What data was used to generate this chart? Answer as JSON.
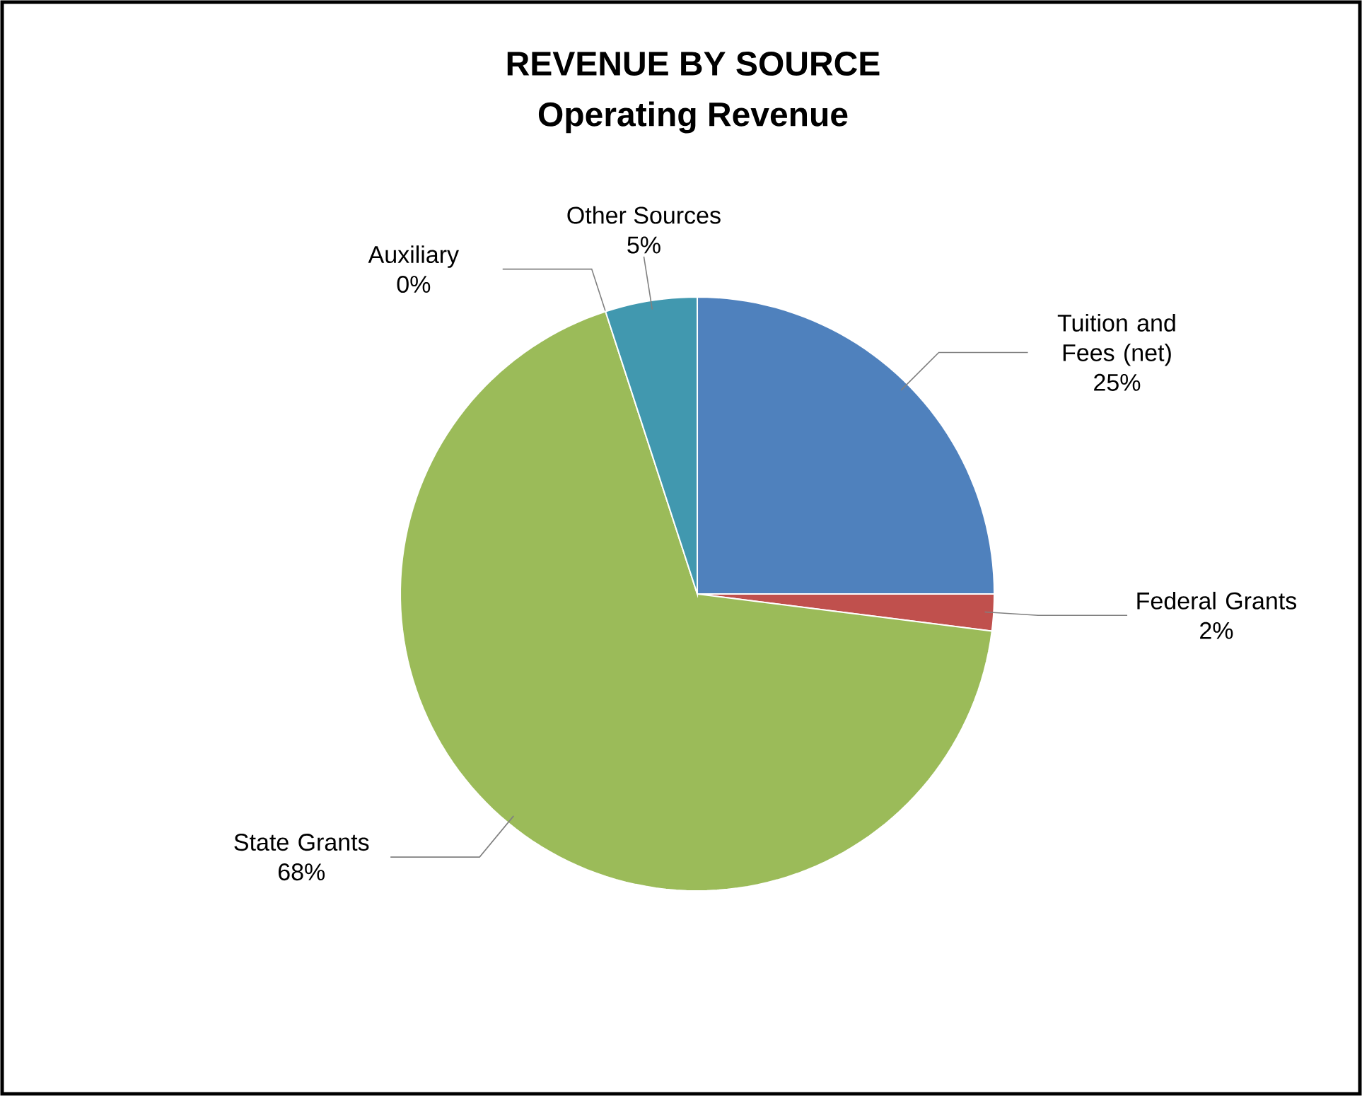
{
  "chart_data": {
    "type": "pie",
    "title": "REVENUE BY SOURCE",
    "subtitle": "Operating Revenue",
    "categories": [
      "Tuition and Fees (net)",
      "Federal Grants",
      "State Grants",
      "Auxiliary",
      "Other Sources"
    ],
    "values": [
      25,
      2,
      68,
      0,
      5
    ],
    "value_labels": [
      "25%",
      "2%",
      "68%",
      "0%",
      "5%"
    ],
    "colors": [
      "#4f81bd",
      "#c0504d",
      "#9bbb59",
      "#8064a2",
      "#4198af"
    ]
  }
}
